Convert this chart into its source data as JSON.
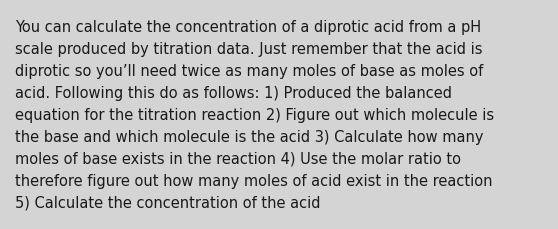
{
  "background_color": "#d4d4d4",
  "text_color": "#1a1a1a",
  "font_size": 10.5,
  "font_family": "DejaVu Sans",
  "fig_width": 5.58,
  "fig_height": 2.3,
  "dpi": 100,
  "wrapped_lines": [
    "You can calculate the concentration of a diprotic acid from a pH",
    "scale produced by titration data. Just remember that the acid is",
    "diprotic so you’ll need twice as many moles of base as moles of",
    "acid. Following this do as follows: 1) Produced the balanced",
    "equation for the titration reaction 2) Figure out which molecule is",
    "the base and which molecule is the acid 3) Calculate how many",
    "moles of base exists in the reaction 4) Use the molar ratio to",
    "therefore figure out how many moles of acid exist in the reaction",
    "5) Calculate the concentration of the acid"
  ]
}
